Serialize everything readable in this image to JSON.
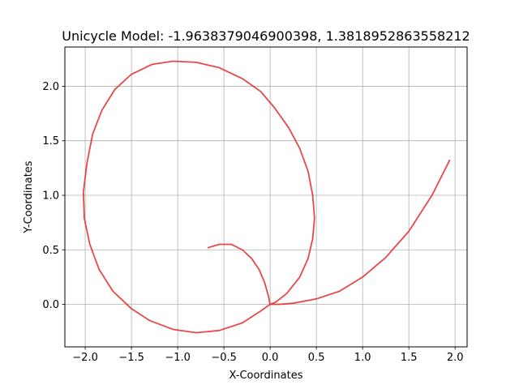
{
  "chart_data": {
    "type": "line",
    "title": "Unicycle Model: -1.9638379046900398, 1.3818952863558212",
    "xlabel": "X-Coordinates",
    "ylabel": "Y-Coordinates",
    "xlim": [
      -2.22,
      2.13
    ],
    "ylim": [
      -0.39,
      2.36
    ],
    "xticks": [
      -2.0,
      -1.5,
      -1.0,
      -0.5,
      0.0,
      0.5,
      1.0,
      1.5,
      2.0
    ],
    "yticks": [
      0.0,
      0.5,
      1.0,
      1.5,
      2.0
    ],
    "xtick_labels": [
      "−2.0",
      "−1.5",
      "−1.0",
      "−0.5",
      "0.0",
      "0.5",
      "1.0",
      "1.5",
      "2.0"
    ],
    "ytick_labels": [
      "0.0",
      "0.5",
      "1.0",
      "1.5",
      "2.0"
    ],
    "grid": true,
    "series": [
      {
        "color": "#e41a1c",
        "x": [
          1.94,
          1.75,
          1.5,
          1.25,
          1.0,
          0.75,
          0.5,
          0.25,
          0.1,
          0.0,
          -0.1,
          -0.3,
          -0.55,
          -0.8,
          -1.05,
          -1.3,
          -1.5,
          -1.7,
          -1.85,
          -1.95,
          -2.01,
          -2.02,
          -1.98,
          -1.92,
          -1.82,
          -1.68,
          -1.5,
          -1.28,
          -1.05,
          -0.8,
          -0.55,
          -0.3,
          -0.1,
          0.05,
          0.2,
          0.32,
          0.41,
          0.46,
          0.48,
          0.46,
          0.41,
          0.32,
          0.18,
          0.06,
          0.0,
          -0.02,
          -0.06,
          -0.12,
          -0.2,
          -0.3,
          -0.42,
          -0.55,
          -0.67
        ],
        "y": [
          1.32,
          1.0,
          0.67,
          0.43,
          0.25,
          0.12,
          0.05,
          0.01,
          0.0,
          0.0,
          -0.06,
          -0.17,
          -0.24,
          -0.26,
          -0.23,
          -0.15,
          -0.04,
          0.12,
          0.32,
          0.55,
          0.79,
          1.03,
          1.3,
          1.56,
          1.78,
          1.97,
          2.11,
          2.2,
          2.23,
          2.22,
          2.17,
          2.07,
          1.95,
          1.8,
          1.62,
          1.43,
          1.22,
          1.0,
          0.79,
          0.6,
          0.42,
          0.25,
          0.1,
          0.02,
          0.0,
          0.08,
          0.2,
          0.32,
          0.42,
          0.5,
          0.55,
          0.55,
          0.52
        ]
      }
    ]
  }
}
